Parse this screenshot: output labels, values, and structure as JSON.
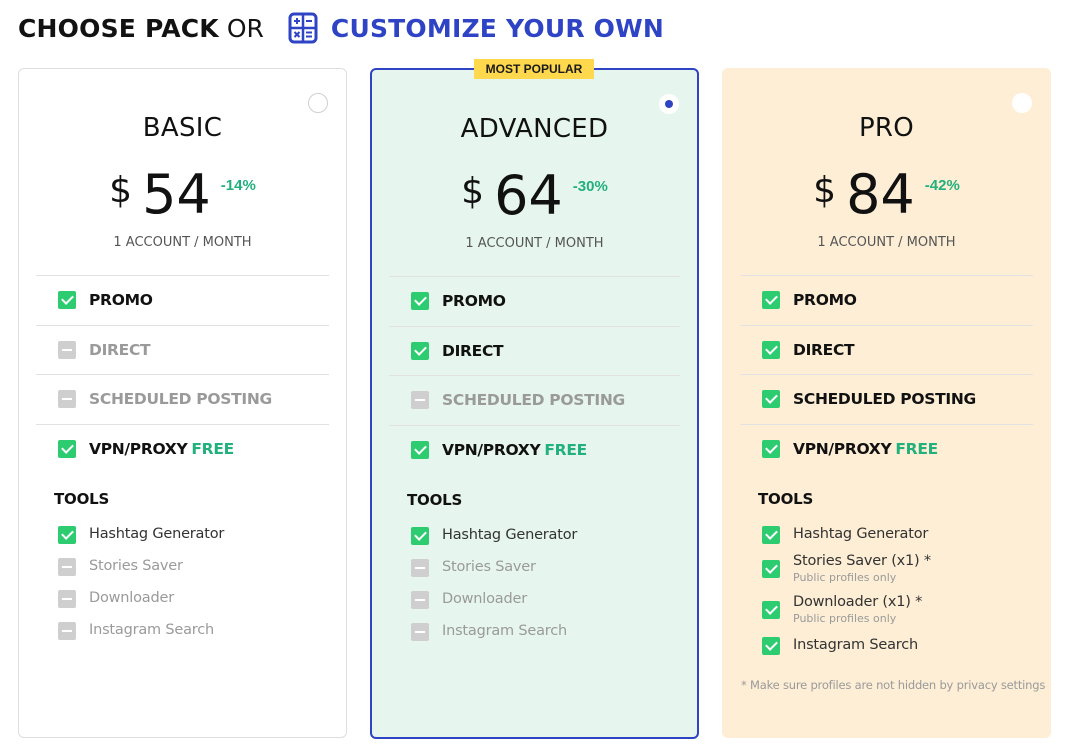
{
  "header": {
    "choose_pack": "CHOOSE PACK",
    "or": "OR",
    "customize": "CUSTOMIZE YOUR OWN",
    "customize_icon": "calculator-icon"
  },
  "colors": {
    "accent": "#2f44c4",
    "check_on": "#2ecc71",
    "check_off": "#cfcfcf",
    "discount": "#22b07d",
    "badge": "#ffd84d",
    "advanced_bg": "#e6f6ee",
    "pro_bg": "#fdeed5"
  },
  "tools_title": "TOOLS",
  "plans": [
    {
      "name": "BASIC",
      "selected": false,
      "currency": "$",
      "price": "54",
      "discount": "-14%",
      "period": "1 ACCOUNT / MONTH",
      "features": [
        {
          "label": "PROMO",
          "enabled": true
        },
        {
          "label": "DIRECT",
          "enabled": false
        },
        {
          "label": "SCHEDULED POSTING",
          "enabled": false
        },
        {
          "label": "VPN/PROXY",
          "extra": "FREE",
          "enabled": true
        }
      ],
      "tools": [
        {
          "label": "Hashtag Generator",
          "enabled": true
        },
        {
          "label": "Stories Saver",
          "enabled": false
        },
        {
          "label": "Downloader",
          "enabled": false
        },
        {
          "label": "Instagram Search",
          "enabled": false
        }
      ]
    },
    {
      "name": "ADVANCED",
      "badge": "MOST POPULAR",
      "selected": true,
      "currency": "$",
      "price": "64",
      "discount": "-30%",
      "period": "1 ACCOUNT / MONTH",
      "features": [
        {
          "label": "PROMO",
          "enabled": true
        },
        {
          "label": "DIRECT",
          "enabled": true
        },
        {
          "label": "SCHEDULED POSTING",
          "enabled": false
        },
        {
          "label": "VPN/PROXY",
          "extra": "FREE",
          "enabled": true
        }
      ],
      "tools": [
        {
          "label": "Hashtag Generator",
          "enabled": true
        },
        {
          "label": "Stories Saver",
          "enabled": false
        },
        {
          "label": "Downloader",
          "enabled": false
        },
        {
          "label": "Instagram Search",
          "enabled": false
        }
      ]
    },
    {
      "name": "PRO",
      "selected": false,
      "currency": "$",
      "price": "84",
      "discount": "-42%",
      "period": "1 ACCOUNT / MONTH",
      "features": [
        {
          "label": "PROMO",
          "enabled": true
        },
        {
          "label": "DIRECT",
          "enabled": true
        },
        {
          "label": "SCHEDULED POSTING",
          "enabled": true
        },
        {
          "label": "VPN/PROXY",
          "extra": "FREE",
          "enabled": true
        }
      ],
      "tools": [
        {
          "label": "Hashtag Generator",
          "enabled": true
        },
        {
          "label": "Stories Saver (x1) *",
          "sub": "Public profiles only",
          "enabled": true
        },
        {
          "label": "Downloader (x1) *",
          "sub": "Public profiles only",
          "enabled": true
        },
        {
          "label": "Instagram Search",
          "enabled": true
        }
      ],
      "footnote": "* Make sure profiles are not hidden by privacy settings"
    }
  ]
}
